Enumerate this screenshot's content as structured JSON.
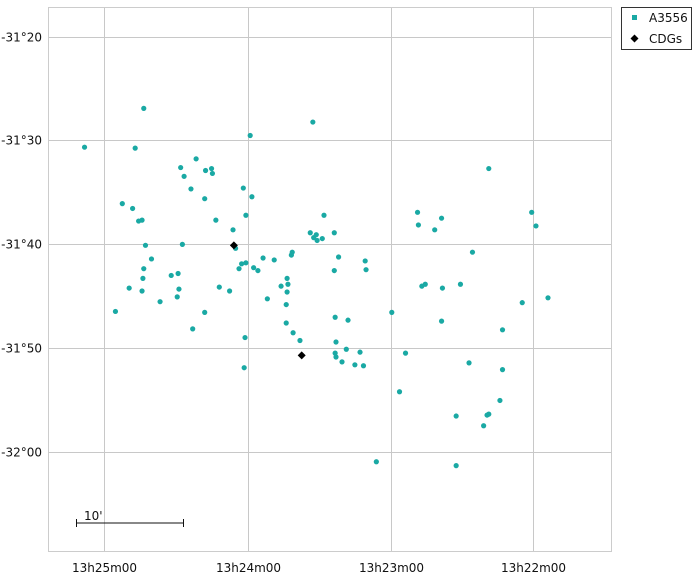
{
  "colors": {
    "background": "#ffffff",
    "frame": "#cccccc",
    "grid": "#c8c8c8",
    "members": "#1aa9a4",
    "cdgs": "#000000"
  },
  "legend": {
    "items": [
      {
        "label": "A3556",
        "marker": "square",
        "color": "#1aa9a4"
      },
      {
        "label": "CDGs",
        "marker": "diamond",
        "color": "#000000"
      }
    ],
    "placement": "top-right, outside plot"
  },
  "scale_bar": {
    "label": "10'"
  },
  "chart_data": {
    "type": "scatter",
    "title": "",
    "xlabel": "",
    "ylabel": "",
    "x_direction": "RA increases to the left",
    "xlim": [
      13.3576,
      13.4232
    ],
    "ylim": [
      -32.1602,
      -31.2864
    ],
    "grid": true,
    "x_ticks": [
      {
        "value": 13.4167,
        "label": "13h25m00"
      },
      {
        "value": 13.4,
        "label": "13h24m00"
      },
      {
        "value": 13.3833,
        "label": "13h23m00"
      },
      {
        "value": 13.3667,
        "label": "13h22m00"
      }
    ],
    "y_ticks": [
      {
        "value": -31.3333,
        "label": "-31°20"
      },
      {
        "value": -31.5,
        "label": "-31°30"
      },
      {
        "value": -31.6667,
        "label": "-31°40"
      },
      {
        "value": -31.8333,
        "label": "-31°50"
      },
      {
        "value": -32.0,
        "label": "-32°00"
      }
    ],
    "series": [
      {
        "name": "A3556",
        "marker": "square",
        "color": "#1aa9a4",
        "points": [
          [
            13.4121,
            -31.4484
          ],
          [
            13.419,
            -31.5108
          ],
          [
            13.4131,
            -31.5123
          ],
          [
            13.4146,
            -31.6014
          ],
          [
            13.4134,
            -31.6092
          ],
          [
            13.4123,
            -31.6279
          ],
          [
            13.4127,
            -31.6294
          ],
          [
            13.4119,
            -31.6684
          ],
          [
            13.4112,
            -31.6903
          ],
          [
            13.4089,
            -31.7168
          ],
          [
            13.4121,
            -31.7059
          ],
          [
            13.4122,
            -31.7215
          ],
          [
            13.4123,
            -31.7418
          ],
          [
            13.4138,
            -31.7371
          ],
          [
            13.4154,
            -31.7746
          ],
          [
            13.4102,
            -31.7589
          ],
          [
            13.4078,
            -31.5435
          ],
          [
            13.4074,
            -31.5576
          ],
          [
            13.4066,
            -31.5778
          ],
          [
            13.4049,
            -31.5482
          ],
          [
            13.406,
            -31.5295
          ],
          [
            13.4042,
            -31.5451
          ],
          [
            13.4041,
            -31.5529
          ],
          [
            13.405,
            -31.5935
          ],
          [
            13.4037,
            -31.6279
          ],
          [
            13.4076,
            -31.6669
          ],
          [
            13.4081,
            -31.7137
          ],
          [
            13.408,
            -31.7387
          ],
          [
            13.4082,
            -31.7512
          ],
          [
            13.405,
            -31.7761
          ],
          [
            13.4064,
            -31.8026
          ],
          [
            13.4021,
            -31.7418
          ],
          [
            13.4033,
            -31.7355
          ],
          [
            13.401,
            -31.7059
          ],
          [
            13.4014,
            -31.6732
          ],
          [
            13.4002,
            -31.6965
          ],
          [
            13.4017,
            -31.6435
          ],
          [
            13.3995,
            -31.5904
          ],
          [
            13.4005,
            -31.5764
          ],
          [
            13.4002,
            -31.6201
          ],
          [
            13.4007,
            -31.6981
          ],
          [
            13.3993,
            -31.7043
          ],
          [
            13.3997,
            -31.492
          ],
          [
            13.4003,
            -31.8166
          ],
          [
            13.4004,
            -31.865
          ],
          [
            13.3988,
            -31.709
          ],
          [
            13.3982,
            -31.6888
          ],
          [
            13.3969,
            -31.6919
          ],
          [
            13.3977,
            -31.7543
          ],
          [
            13.3961,
            -31.734
          ],
          [
            13.3953,
            -31.7309
          ],
          [
            13.3949,
            -31.6841
          ],
          [
            13.3948,
            -31.6794
          ],
          [
            13.3954,
            -31.7215
          ],
          [
            13.3954,
            -31.7434
          ],
          [
            13.3955,
            -31.7636
          ],
          [
            13.3955,
            -31.7932
          ],
          [
            13.3947,
            -31.8088
          ],
          [
            13.3939,
            -31.8213
          ],
          [
            13.3924,
            -31.4704
          ],
          [
            13.3927,
            -31.6482
          ],
          [
            13.3923,
            -31.656
          ],
          [
            13.392,
            -31.6513
          ],
          [
            13.3919,
            -31.6606
          ],
          [
            13.3911,
            -31.6201
          ],
          [
            13.3913,
            -31.6576
          ],
          [
            13.3899,
            -31.6482
          ],
          [
            13.3894,
            -31.6872
          ],
          [
            13.3899,
            -31.709
          ],
          [
            13.3898,
            -31.7839
          ],
          [
            13.3897,
            -31.8237
          ],
          [
            13.3898,
            -31.8416
          ],
          [
            13.3897,
            -31.8478
          ],
          [
            13.389,
            -31.8556
          ],
          [
            13.3885,
            -31.8353
          ],
          [
            13.3883,
            -31.7886
          ],
          [
            13.3875,
            -31.8603
          ],
          [
            13.3869,
            -31.84
          ],
          [
            13.3865,
            -31.8618
          ],
          [
            13.3863,
            -31.6935
          ],
          [
            13.3862,
            -31.7075
          ],
          [
            13.385,
            -32.016
          ],
          [
            13.3832,
            -31.7761
          ],
          [
            13.3823,
            -31.9036
          ],
          [
            13.3816,
            -31.8416
          ],
          [
            13.3802,
            -31.6154
          ],
          [
            13.3801,
            -31.6357
          ],
          [
            13.3797,
            -31.734
          ],
          [
            13.3793,
            -31.7309
          ],
          [
            13.3782,
            -31.6435
          ],
          [
            13.3774,
            -31.6248
          ],
          [
            13.3773,
            -31.7371
          ],
          [
            13.3774,
            -31.7902
          ],
          [
            13.3757,
            -31.9426
          ],
          [
            13.3757,
            -32.0223
          ],
          [
            13.3752,
            -31.7309
          ],
          [
            13.3742,
            -31.8572
          ],
          [
            13.3738,
            -31.6794
          ],
          [
            13.3725,
            -31.9582
          ],
          [
            13.3721,
            -31.9411
          ],
          [
            13.3719,
            -31.9395
          ],
          [
            13.3719,
            -31.5451
          ],
          [
            13.3706,
            -31.9176
          ],
          [
            13.3703,
            -31.8041
          ],
          [
            13.3703,
            -31.8681
          ],
          [
            13.368,
            -31.7605
          ],
          [
            13.3669,
            -31.6154
          ],
          [
            13.3664,
            -31.6373
          ],
          [
            13.365,
            -31.7527
          ]
        ]
      },
      {
        "name": "CDGs",
        "marker": "diamond",
        "color": "#000000",
        "points": [
          [
            13.4016,
            -31.6685
          ],
          [
            13.3937,
            -31.8451
          ]
        ]
      }
    ]
  }
}
